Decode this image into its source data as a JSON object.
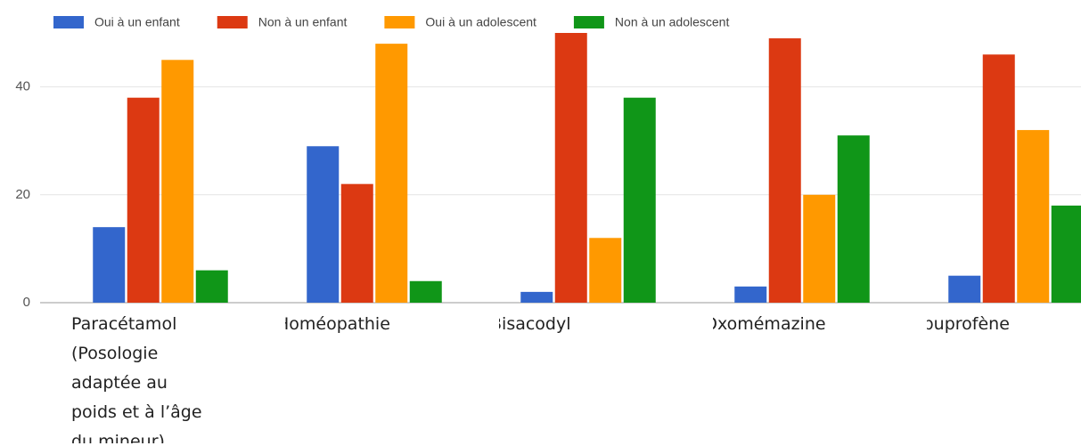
{
  "chart_data": {
    "type": "bar",
    "categories": [
      "Paracétamol (Posologie adaptée au poids et à l’âge du mineur)",
      "Homéopathie",
      "Bisacodyl",
      "Oxomémazine",
      "Ibuprofène"
    ],
    "series": [
      {
        "name": "Oui à un enfant",
        "color": "#3366cc",
        "values": [
          14,
          29,
          2,
          3,
          5
        ]
      },
      {
        "name": "Non à un enfant",
        "color": "#dc3912",
        "values": [
          38,
          22,
          50,
          49,
          46
        ]
      },
      {
        "name": "Oui à un adolescent",
        "color": "#ff9900",
        "values": [
          45,
          48,
          12,
          20,
          32
        ]
      },
      {
        "name": "Non à un adolescent",
        "color": "#109618",
        "values": [
          6,
          4,
          38,
          31,
          18
        ]
      }
    ],
    "ylim": [
      0,
      50
    ],
    "yticks": [
      0,
      20,
      40
    ],
    "grid": true,
    "legend": "top"
  }
}
